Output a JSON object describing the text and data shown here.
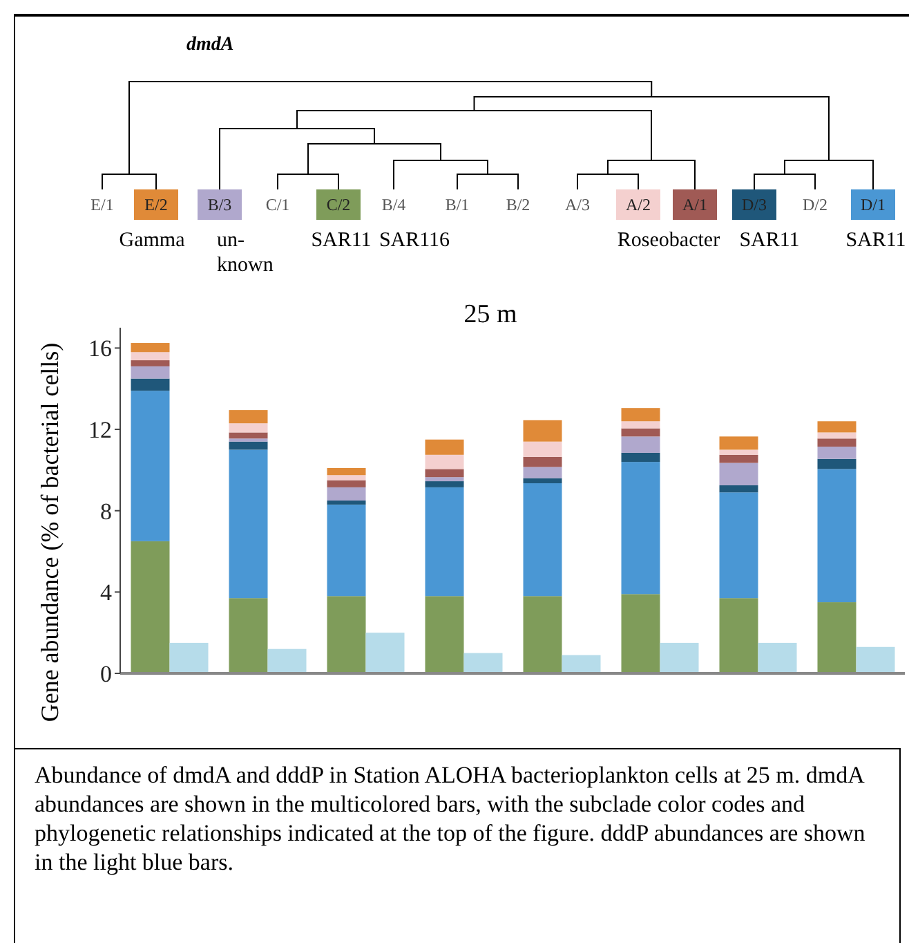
{
  "chart_data": {
    "type": "bar",
    "title": "dmdA",
    "subtitle": "25 m",
    "ylabel": "Gene abundance (% of bacterial cells)",
    "categories": [
      null,
      null,
      null,
      null,
      null,
      null,
      null,
      null,
      null,
      null,
      null,
      null,
      null,
      null,
      null,
      null
    ],
    "stacked": true,
    "legend": "top",
    "tick_labels": "y",
    "ylim": [
      0,
      17
    ],
    "yticks": [
      0,
      4,
      8,
      12,
      16
    ],
    "series": [
      {
        "name": "C/2",
        "color": "#7f9c5a",
        "values": [
          6.5,
          null,
          3.7,
          null,
          3.8,
          null,
          3.8,
          null,
          3.8,
          null,
          3.9,
          null,
          3.7,
          null,
          3.5,
          null
        ]
      },
      {
        "name": "D/1",
        "color": "#4a97d4",
        "values": [
          7.4,
          null,
          7.3,
          null,
          4.5,
          null,
          5.35,
          null,
          5.55,
          null,
          6.5,
          null,
          5.2,
          null,
          6.55,
          null
        ]
      },
      {
        "name": "D/3",
        "color": "#1f577a",
        "values": [
          0.6,
          null,
          0.4,
          null,
          0.2,
          null,
          0.3,
          null,
          0.25,
          null,
          0.45,
          null,
          0.35,
          null,
          0.5,
          null
        ]
      },
      {
        "name": "B/3",
        "color": "#b0a8cd",
        "values": [
          0.6,
          null,
          0.15,
          null,
          0.65,
          null,
          0.2,
          null,
          0.55,
          null,
          0.8,
          null,
          1.1,
          null,
          0.6,
          null
        ]
      },
      {
        "name": "A/1",
        "color": "#a05a55",
        "values": [
          0.3,
          null,
          0.3,
          null,
          0.35,
          null,
          0.4,
          null,
          0.5,
          null,
          0.4,
          null,
          0.4,
          null,
          0.4,
          null
        ]
      },
      {
        "name": "A/2",
        "color": "#f4d0cf",
        "values": [
          0.4,
          null,
          0.45,
          null,
          0.25,
          null,
          0.7,
          null,
          0.75,
          null,
          0.35,
          null,
          0.25,
          null,
          0.3,
          null
        ]
      },
      {
        "name": "E/2",
        "color": "#e08a38",
        "values": [
          0.45,
          null,
          0.65,
          null,
          0.35,
          null,
          0.75,
          null,
          1.05,
          null,
          0.65,
          null,
          0.65,
          null,
          0.55,
          null
        ]
      },
      {
        "color": "#b6dcea",
        "values": [
          null,
          1.5,
          null,
          1.2,
          null,
          2.0,
          null,
          1.0,
          null,
          0.9,
          null,
          1.5,
          null,
          1.5,
          null,
          1.3
        ]
      }
    ],
    "annotations": [
      "E/1",
      "C/1",
      "B/4",
      "B/1",
      "B/2",
      "A/3",
      "D/2",
      "Gamma",
      "un-known",
      "SAR11",
      "SAR116",
      "Roseobacter",
      "SAR11",
      "SAR11",
      "Abundance of dmdA and dddP in Station ALOHA bacterioplankton cells at 25 m. dmdA abundances are shown in the multicolored bars, with the subclade color codes and phylogenetic relationships indicated at the top of the figure. dddP abundances are shown in the light blue bars."
    ]
  }
}
